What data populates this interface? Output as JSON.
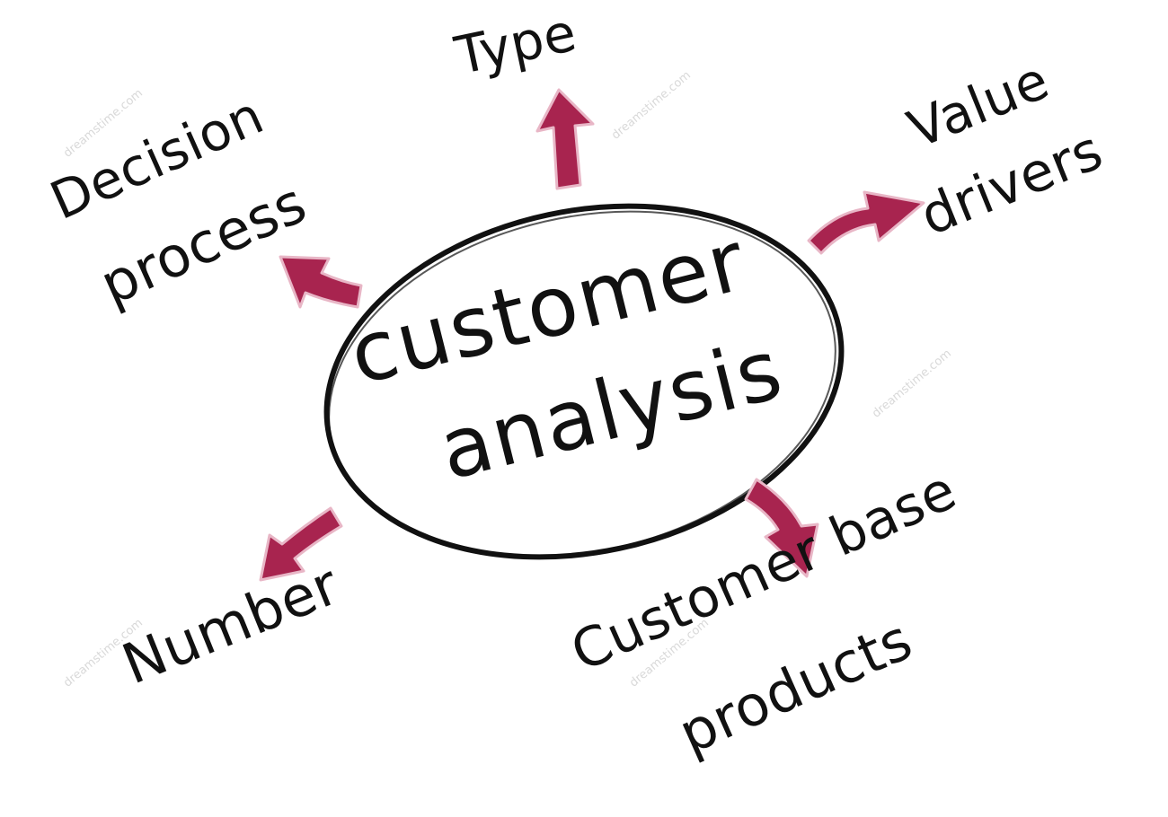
{
  "center": {
    "line1": "customer",
    "line2": "analysis"
  },
  "branches": {
    "type": "Type",
    "value_drivers_line1": "Value",
    "value_drivers_line2": "drivers",
    "decision_process_line1": "Decision",
    "decision_process_line2": "process",
    "number": "Number",
    "customer_base_line1": "Customer base",
    "customer_base_line2": "products"
  },
  "watermark": "dreamstime.com",
  "colors": {
    "arrow_fill": "#a8244f",
    "arrow_outline": "#e8b6c6",
    "ink": "#111111"
  }
}
